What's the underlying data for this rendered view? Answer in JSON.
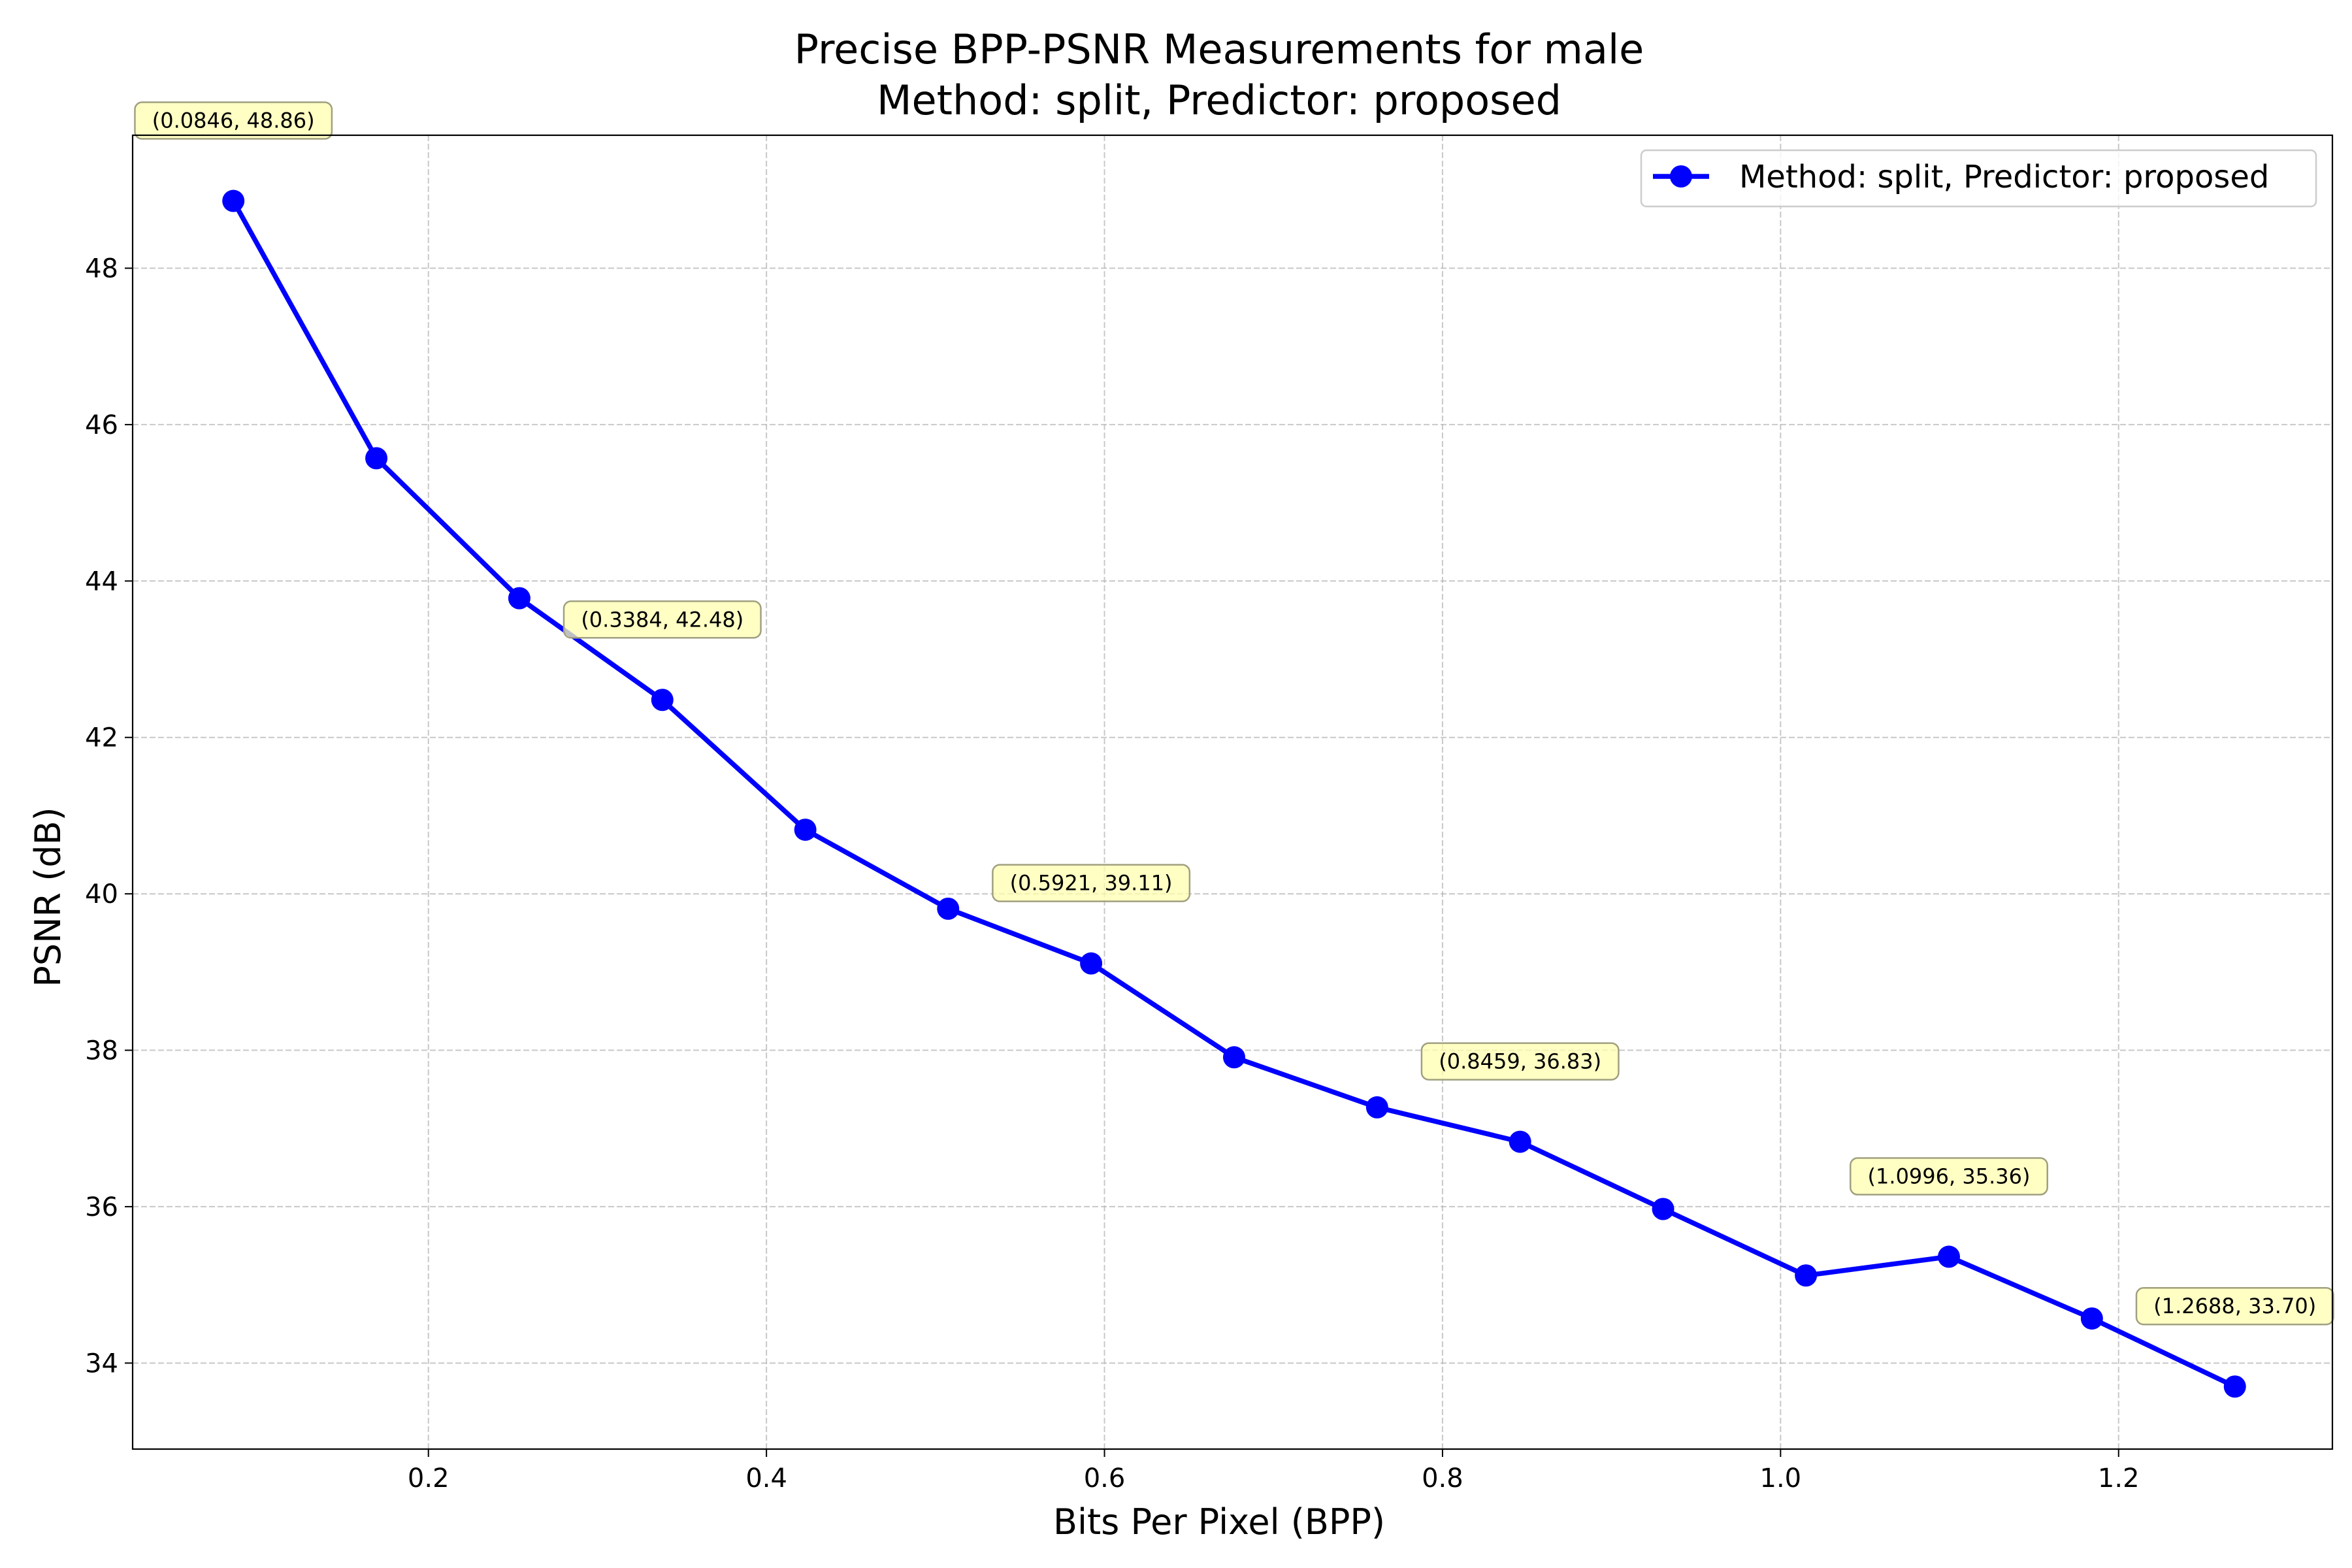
{
  "chart_data": {
    "type": "line",
    "title": "Precise BPP-PSNR Measurements for male",
    "subtitle": "Method: split, Predictor: proposed",
    "xlabel": "Bits Per Pixel (BPP)",
    "ylabel": "PSNR (dB)",
    "xlim": [
      0.025,
      1.3265
    ],
    "ylim": [
      32.9,
      49.7
    ],
    "xticks": [
      0.2,
      0.4,
      0.6,
      0.8,
      1.0,
      1.2
    ],
    "xtick_labels": [
      "0.2",
      "0.4",
      "0.6",
      "0.8",
      "1.0",
      "1.2"
    ],
    "yticks": [
      34,
      36,
      38,
      40,
      42,
      44,
      46,
      48
    ],
    "ytick_labels": [
      "34",
      "36",
      "38",
      "40",
      "42",
      "44",
      "46",
      "48"
    ],
    "grid": true,
    "legend_position": "top-right",
    "series": [
      {
        "name": "Method: split, Predictor: proposed",
        "color": "#0000ff",
        "marker": "circle",
        "x": [
          0.0846,
          0.1692,
          0.2538,
          0.3384,
          0.423,
          0.5075,
          0.5921,
          0.6767,
          0.7613,
          0.8459,
          0.9305,
          1.015,
          1.0996,
          1.1842,
          1.2688
        ],
        "y": [
          48.86,
          45.57,
          43.78,
          42.48,
          40.82,
          39.81,
          39.11,
          37.91,
          37.27,
          36.83,
          35.97,
          35.12,
          35.36,
          34.57,
          33.7
        ]
      }
    ],
    "annotations": [
      {
        "x": 0.0846,
        "y": 48.86,
        "text": "(0.0846, 48.86)"
      },
      {
        "x": 0.3384,
        "y": 42.48,
        "text": "(0.3384, 42.48)"
      },
      {
        "x": 0.5921,
        "y": 39.11,
        "text": "(0.5921, 39.11)"
      },
      {
        "x": 0.8459,
        "y": 36.83,
        "text": "(0.8459, 36.83)"
      },
      {
        "x": 1.0996,
        "y": 35.36,
        "text": "(1.0996, 35.36)"
      },
      {
        "x": 1.2688,
        "y": 33.7,
        "text": "(1.2688, 33.70)"
      }
    ],
    "annotation_style": {
      "fill": "#ffffb0",
      "edge": "#a0a080"
    }
  }
}
